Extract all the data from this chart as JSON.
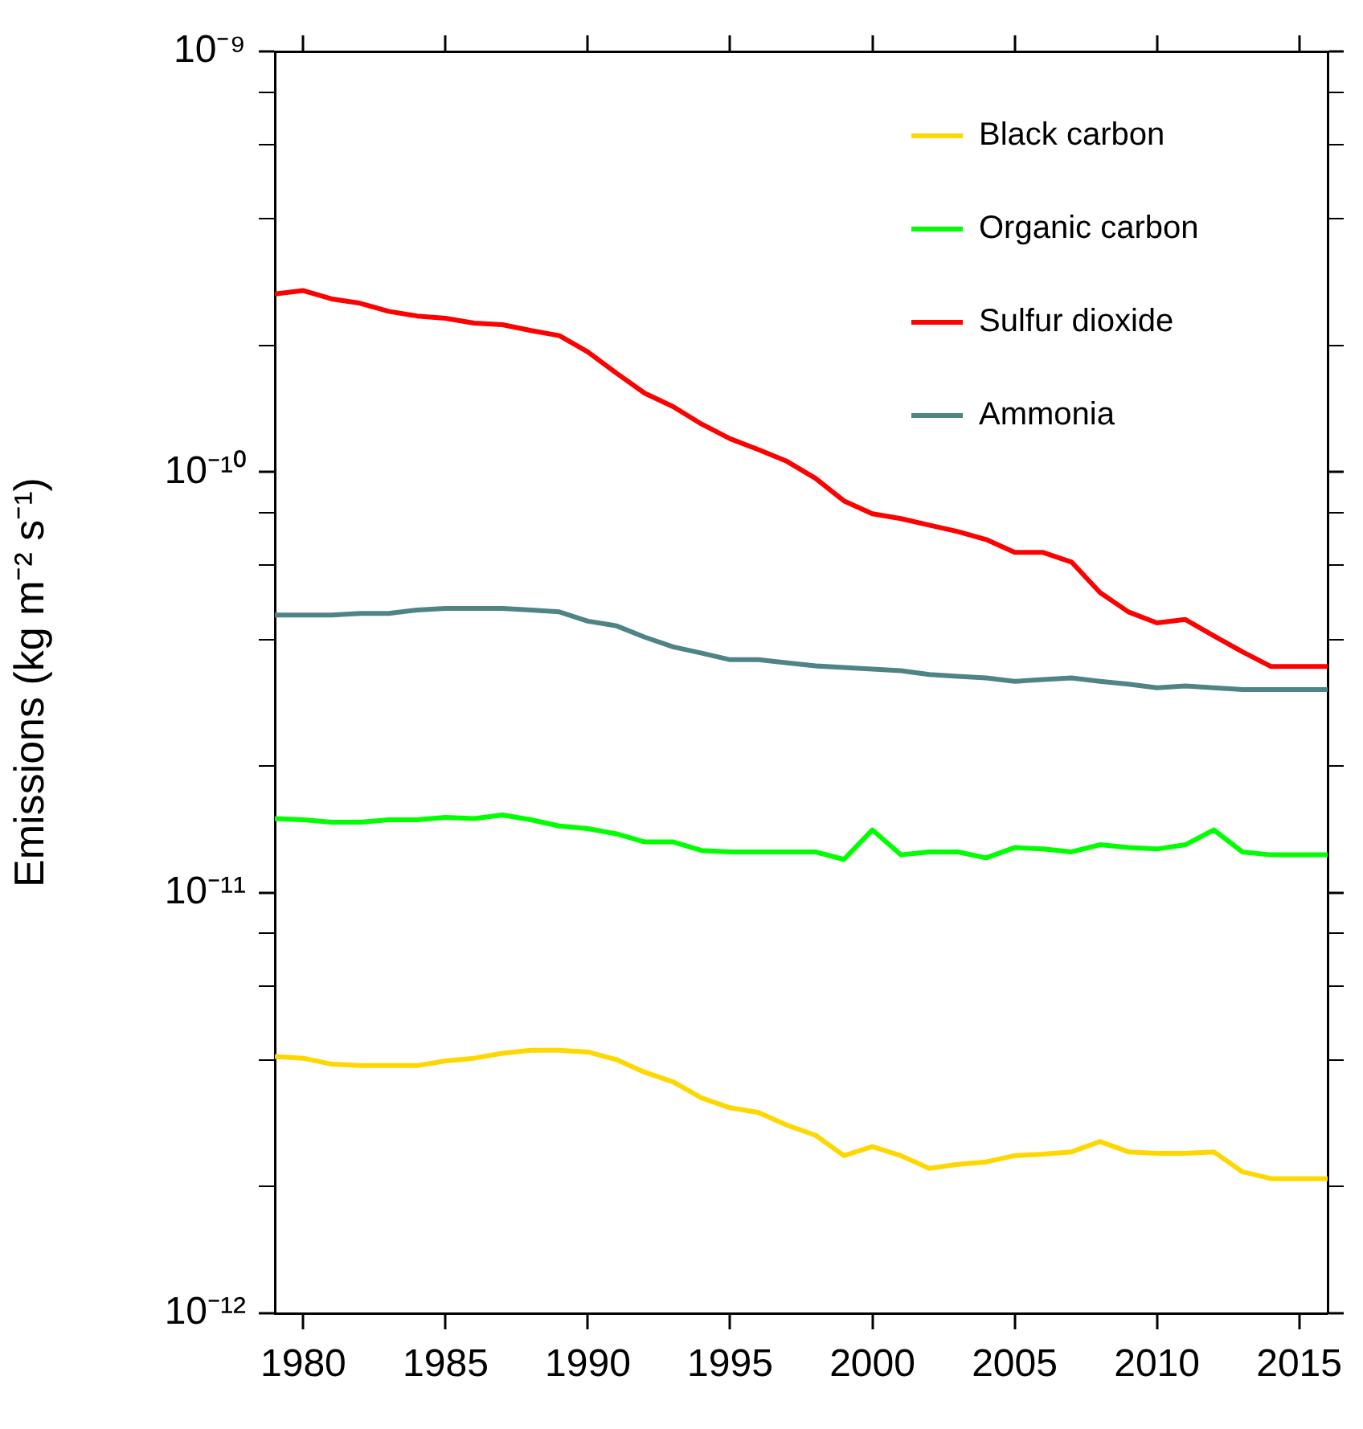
{
  "chart_data": {
    "type": "line",
    "ylabel": "Emissions (kg m⁻² s⁻¹)",
    "log": "y",
    "legend": "top right",
    "grid": false,
    "marker": "none",
    "line_style": "solid",
    "x": [
      1979,
      1980,
      1981,
      1982,
      1983,
      1984,
      1985,
      1986,
      1987,
      1988,
      1989,
      1990,
      1991,
      1992,
      1993,
      1994,
      1995,
      1996,
      1997,
      1998,
      1999,
      2000,
      2001,
      2002,
      2003,
      2004,
      2005,
      2006,
      2007,
      2008,
      2009,
      2010,
      2011,
      2012,
      2013,
      2014,
      2015,
      2016
    ],
    "xlim": [
      1979,
      2016
    ],
    "xticks": [
      1980,
      1985,
      1990,
      1995,
      2000,
      2005,
      2010,
      2015
    ],
    "ylim": [
      1e-12,
      1e-09
    ],
    "yticks": [
      {
        "value": 1e-12,
        "label": "10⁻¹²"
      },
      {
        "value": 2e-12,
        "label": null
      },
      {
        "value": 4e-12,
        "label": null
      },
      {
        "value": 6e-12,
        "label": null
      },
      {
        "value": 8e-12,
        "label": null
      },
      {
        "value": 1e-11,
        "label": "10⁻¹¹"
      },
      {
        "value": 2e-11,
        "label": null
      },
      {
        "value": 4e-11,
        "label": null
      },
      {
        "value": 6e-11,
        "label": null
      },
      {
        "value": 8e-11,
        "label": null
      },
      {
        "value": 1e-10,
        "label": "10⁻¹⁰"
      },
      {
        "value": 2e-10,
        "label": null
      },
      {
        "value": 4e-10,
        "label": null
      },
      {
        "value": 6e-10,
        "label": null
      },
      {
        "value": 8e-10,
        "label": null
      },
      {
        "value": 1e-09,
        "label": "10⁻⁹"
      }
    ],
    "series": [
      {
        "name": "Black carbon",
        "color": "#ffd700",
        "values": [
          4.08e-12,
          4.04e-12,
          3.91e-12,
          3.88e-12,
          3.88e-12,
          3.88e-12,
          3.98e-12,
          4.04e-12,
          4.15e-12,
          4.22e-12,
          4.22e-12,
          4.18e-12,
          4.01e-12,
          3.74e-12,
          3.55e-12,
          3.25e-12,
          3.08e-12,
          3e-12,
          2.8e-12,
          2.65e-12,
          2.37e-12,
          2.49e-12,
          2.37e-12,
          2.21e-12,
          2.26e-12,
          2.29e-12,
          2.37e-12,
          2.39e-12,
          2.42e-12,
          2.56e-12,
          2.42e-12,
          2.4e-12,
          2.4e-12,
          2.42e-12,
          2.17e-12,
          2.09e-12,
          2.09e-12,
          2.09e-12
        ]
      },
      {
        "name": "Organic carbon",
        "color": "#00ff00",
        "values": [
          1.5e-11,
          1.49e-11,
          1.47e-11,
          1.47e-11,
          1.49e-11,
          1.49e-11,
          1.51e-11,
          1.5e-11,
          1.53e-11,
          1.49e-11,
          1.44e-11,
          1.42e-11,
          1.38e-11,
          1.32e-11,
          1.32e-11,
          1.26e-11,
          1.25e-11,
          1.25e-11,
          1.25e-11,
          1.25e-11,
          1.2e-11,
          1.41e-11,
          1.23e-11,
          1.25e-11,
          1.25e-11,
          1.21e-11,
          1.28e-11,
          1.27e-11,
          1.25e-11,
          1.3e-11,
          1.28e-11,
          1.27e-11,
          1.3e-11,
          1.41e-11,
          1.25e-11,
          1.23e-11,
          1.23e-11,
          1.23e-11
        ]
      },
      {
        "name": "Sulfur dioxide",
        "color": "#ff0000",
        "values": [
          2.65e-10,
          2.7e-10,
          2.58e-10,
          2.52e-10,
          2.41e-10,
          2.35e-10,
          2.32e-10,
          2.26e-10,
          2.24e-10,
          2.17e-10,
          2.11e-10,
          1.93e-10,
          1.72e-10,
          1.54e-10,
          1.43e-10,
          1.3e-10,
          1.2e-10,
          1.13e-10,
          1.06e-10,
          9.66e-11,
          8.54e-11,
          7.96e-11,
          7.75e-11,
          7.48e-11,
          7.22e-11,
          6.91e-11,
          6.44e-11,
          6.44e-11,
          6.11e-11,
          5.17e-11,
          4.65e-11,
          4.38e-11,
          4.46e-11,
          4.08e-11,
          3.74e-11,
          3.45e-11,
          3.45e-11,
          3.45e-11
        ]
      },
      {
        "name": "Ammonia",
        "color": "#4f8486",
        "values": [
          4.57e-11,
          4.57e-11,
          4.57e-11,
          4.61e-11,
          4.61e-11,
          4.7e-11,
          4.74e-11,
          4.74e-11,
          4.74e-11,
          4.7e-11,
          4.65e-11,
          4.42e-11,
          4.31e-11,
          4.05e-11,
          3.84e-11,
          3.71e-11,
          3.58e-11,
          3.58e-11,
          3.52e-11,
          3.46e-11,
          3.43e-11,
          3.4e-11,
          3.37e-11,
          3.3e-11,
          3.27e-11,
          3.24e-11,
          3.18e-11,
          3.21e-11,
          3.24e-11,
          3.18e-11,
          3.13e-11,
          3.07e-11,
          3.1e-11,
          3.07e-11,
          3.04e-11,
          3.04e-11,
          3.04e-11,
          3.04e-11
        ]
      }
    ]
  }
}
